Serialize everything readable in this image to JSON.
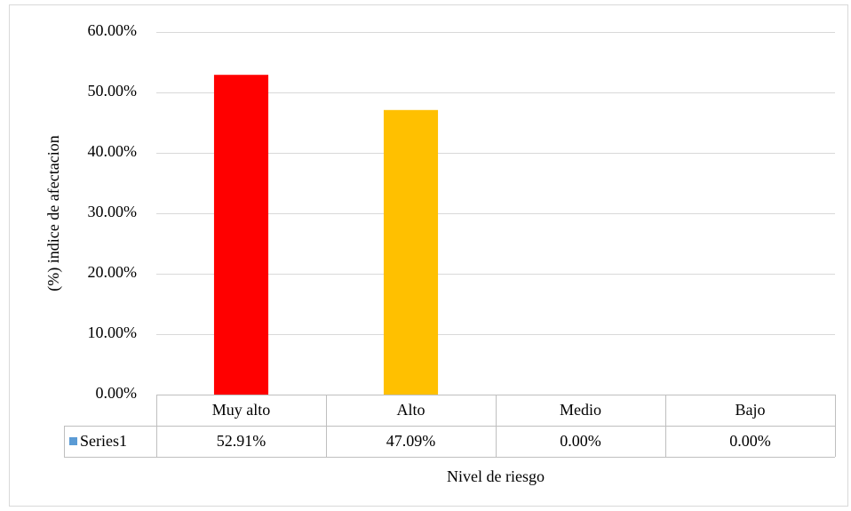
{
  "chart_data": {
    "type": "bar",
    "categories": [
      "Muy alto",
      "Alto",
      "Medio",
      "Bajo"
    ],
    "series": [
      {
        "name": "Series1",
        "color": "#5b9bd5",
        "values": [
          52.91,
          47.09,
          0,
          0
        ],
        "value_labels": [
          "52.91%",
          "47.09%",
          "0.00%",
          "0.00%"
        ],
        "point_colors": [
          "#ff0000",
          "#ffc000",
          "#5b9bd5",
          "#5b9bd5"
        ]
      }
    ],
    "ylim": [
      0,
      60
    ],
    "yticks": [
      {
        "value": 0,
        "label": "0.00%"
      },
      {
        "value": 10,
        "label": "10.00%"
      },
      {
        "value": 20,
        "label": "20.00%"
      },
      {
        "value": 30,
        "label": "30.00%"
      },
      {
        "value": 40,
        "label": "40.00%"
      },
      {
        "value": 50,
        "label": "50.00%"
      },
      {
        "value": 60,
        "label": "60.00%"
      }
    ],
    "grid": true,
    "ylabel": "(%) indice de afectacion",
    "xlabel": "Nivel de riesgo",
    "data_table": true
  }
}
